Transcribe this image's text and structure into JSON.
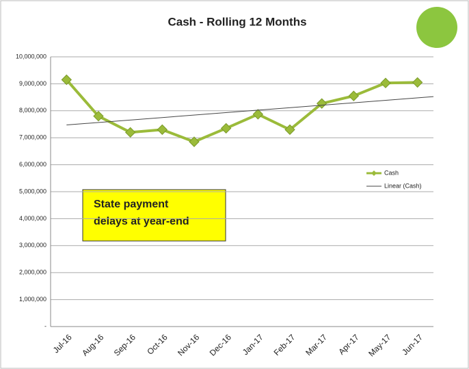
{
  "chart_data": {
    "type": "line",
    "title": "Cash - Rolling 12 Months",
    "categories": [
      "Jul-16",
      "Aug-16",
      "Sep-16",
      "Oct-16",
      "Nov-16",
      "Dec-16",
      "Jan-17",
      "Feb-17",
      "Mar-17",
      "Apr-17",
      "May-17",
      "Jun-17"
    ],
    "series": [
      {
        "name": "Cash",
        "color": "#9bbb3a",
        "values": [
          9150000,
          7800000,
          7200000,
          7300000,
          6850000,
          7350000,
          7870000,
          7300000,
          8270000,
          8550000,
          9030000,
          9050000
        ]
      },
      {
        "name": "Linear (Cash)",
        "color": "#444444",
        "trendline": "linear",
        "trendline_of": 0
      }
    ],
    "ylim": [
      0,
      10000000
    ],
    "yticks": [
      {
        "value": 0,
        "label": "-"
      },
      {
        "value": 1000000,
        "label": "1,000,000"
      },
      {
        "value": 2000000,
        "label": "2,000,000"
      },
      {
        "value": 3000000,
        "label": "3,000,000"
      },
      {
        "value": 4000000,
        "label": "4,000,000"
      },
      {
        "value": 5000000,
        "label": "5,000,000"
      },
      {
        "value": 6000000,
        "label": "6,000,000"
      },
      {
        "value": 7000000,
        "label": "7,000,000"
      },
      {
        "value": 8000000,
        "label": "8,000,000"
      },
      {
        "value": 9000000,
        "label": "9,000,000"
      },
      {
        "value": 10000000,
        "label": "10,000,000"
      }
    ],
    "grid": true,
    "legend": "right",
    "annotations": [
      "State payment",
      "delays at year-end"
    ]
  }
}
